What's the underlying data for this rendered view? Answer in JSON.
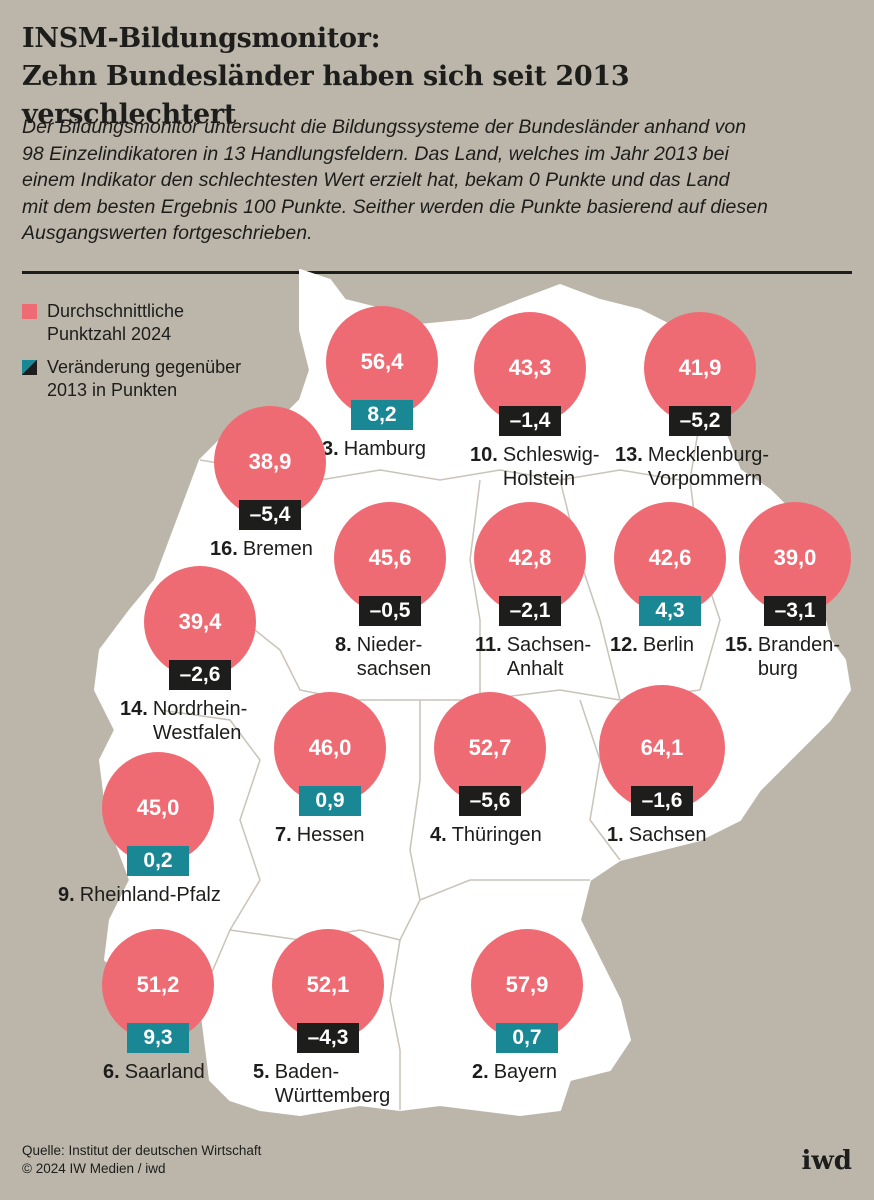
{
  "header": {
    "title_line1": "INSM-Bildungsmonitor:",
    "title_line2": "Zehn Bundesländer haben sich seit 2013 verschlechtert",
    "intro_line1": "Der Bildungsmonitor untersucht die Bildungssysteme der Bundesländer anhand von",
    "intro_line2": "98 Einzelindikatoren in 13 Handlungsfeldern. Das Land, welches im Jahr 2013 bei",
    "intro_line3": "einem Indikator den schlechtesten Wert erzielt hat, bekam 0 Punkte und das Land",
    "intro_line4": "mit dem besten Ergebnis 100 Punkte. Seither werden die Punkte basierend auf diesen",
    "intro_line5": "Ausgangswerten fortgeschrieben."
  },
  "legend": {
    "score_line1": "Durchschnittliche",
    "score_line2": "Punktzahl 2024",
    "change_line1": "Veränderung gegenüber",
    "change_line2": "2013 in Punkten"
  },
  "colors": {
    "score": "#ef6b73",
    "positive_change": "#1a8795",
    "negative_change": "#1d1d1b",
    "background": "#bcb6aa",
    "map": "#ffffff"
  },
  "chart_data": {
    "type": "bubble-map",
    "title": "INSM-Bildungsmonitor: Zehn Bundesländer haben sich seit 2013 verschlechtert",
    "series": [
      {
        "name": "Durchschnittliche Punktzahl 2024"
      },
      {
        "name": "Veränderung gegenüber 2013 in Punkten"
      }
    ],
    "states": [
      {
        "rank": "3.",
        "name": "Hamburg",
        "score": "56,4",
        "change": "8,2",
        "score_value": 56.4,
        "change_value": 8.2
      },
      {
        "rank": "10.",
        "name": "Schleswig-\nHolstein",
        "score": "43,3",
        "change": "–1,4",
        "score_value": 43.3,
        "change_value": -1.4
      },
      {
        "rank": "13.",
        "name": "Mecklenburg-\nVorpommern",
        "score": "41,9",
        "change": "–5,2",
        "score_value": 41.9,
        "change_value": -5.2
      },
      {
        "rank": "16.",
        "name": "Bremen",
        "score": "38,9",
        "change": "–5,4",
        "score_value": 38.9,
        "change_value": -5.4
      },
      {
        "rank": "8.",
        "name": "Nieder-\nsachsen",
        "score": "45,6",
        "change": "–0,5",
        "score_value": 45.6,
        "change_value": -0.5
      },
      {
        "rank": "11.",
        "name": "Sachsen-\nAnhalt",
        "score": "42,8",
        "change": "–2,1",
        "score_value": 42.8,
        "change_value": -2.1
      },
      {
        "rank": "12.",
        "name": "Berlin",
        "score": "42,6",
        "change": "4,3",
        "score_value": 42.6,
        "change_value": 4.3
      },
      {
        "rank": "15.",
        "name": "Branden-\nburg",
        "score": "39,0",
        "change": "–3,1",
        "score_value": 39.0,
        "change_value": -3.1
      },
      {
        "rank": "14.",
        "name": "Nordrhein-\nWestfalen",
        "score": "39,4",
        "change": "–2,6",
        "score_value": 39.4,
        "change_value": -2.6
      },
      {
        "rank": "7.",
        "name": "Hessen",
        "score": "46,0",
        "change": "0,9",
        "score_value": 46.0,
        "change_value": 0.9
      },
      {
        "rank": "4.",
        "name": "Thüringen",
        "score": "52,7",
        "change": "–5,6",
        "score_value": 52.7,
        "change_value": -5.6
      },
      {
        "rank": "1.",
        "name": "Sachsen",
        "score": "64,1",
        "change": "–1,6",
        "score_value": 64.1,
        "change_value": -1.6
      },
      {
        "rank": "9.",
        "name": "Rheinland-Pfalz",
        "score": "45,0",
        "change": "0,2",
        "score_value": 45.0,
        "change_value": 0.2
      },
      {
        "rank": "6.",
        "name": "Saarland",
        "score": "51,2",
        "change": "9,3",
        "score_value": 51.2,
        "change_value": 9.3
      },
      {
        "rank": "5.",
        "name": "Baden-\nWürttemberg",
        "score": "52,1",
        "change": "–4,3",
        "score_value": 52.1,
        "change_value": -4.3
      },
      {
        "rank": "2.",
        "name": "Bayern",
        "score": "57,9",
        "change": "0,7",
        "score_value": 57.9,
        "change_value": 0.7
      }
    ]
  },
  "footer": {
    "source": "Quelle: Institut der deutschen Wirtschaft",
    "copyright": "© 2024 IW Medien / iwd",
    "logo": "iwd"
  }
}
